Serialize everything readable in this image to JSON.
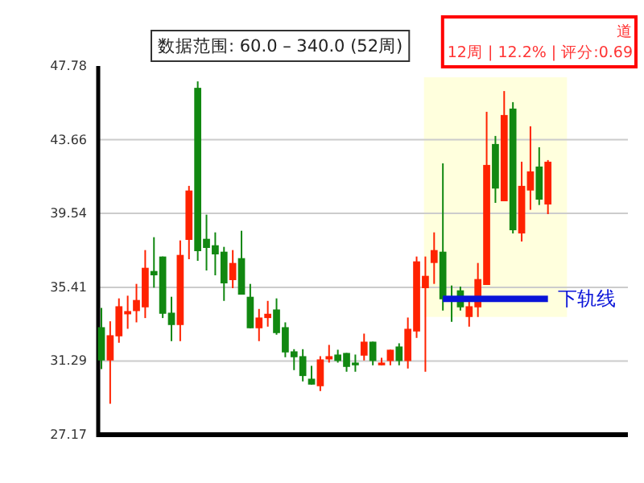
{
  "chart_data": {
    "type": "candlestick",
    "annotations": [
      "数据范围: 60.0 – 340.0 (52周)",
      "道",
      "12周 | 12.2% | 评分:0.69"
    ],
    "categories": [
      null,
      null,
      null,
      null,
      null,
      null,
      null,
      null,
      null,
      null,
      null,
      null,
      null,
      null,
      null,
      null,
      null,
      null,
      null,
      null,
      null,
      null,
      null,
      null,
      null,
      null,
      null,
      null,
      null,
      null,
      null,
      null,
      null,
      null,
      null,
      null,
      null,
      null,
      null,
      null,
      null,
      null,
      null,
      null,
      null,
      null,
      null,
      null,
      null,
      null,
      null,
      null
    ],
    "ohlc": [
      [
        33.18,
        34.26,
        30.84,
        31.32
      ],
      [
        31.32,
        33.51,
        28.9,
        32.73
      ],
      [
        32.67,
        34.79,
        32.31,
        34.35
      ],
      [
        33.9,
        34.94,
        33.09,
        34.08
      ],
      [
        34.08,
        35.6,
        33.45,
        34.7
      ],
      [
        34.29,
        37.49,
        33.69,
        36.5
      ],
      [
        36.32,
        38.21,
        35.39,
        36.08
      ],
      [
        37.13,
        37.13,
        33.69,
        33.93
      ],
      [
        33.99,
        34.88,
        32.4,
        33.3
      ],
      [
        33.3,
        38.03,
        32.4,
        37.22
      ],
      [
        38.06,
        41.08,
        36.98,
        40.82
      ],
      [
        46.56,
        46.92,
        36.89,
        37.43
      ],
      [
        38.12,
        39.47,
        36.35,
        37.61
      ],
      [
        37.76,
        38.48,
        36.08,
        37.25
      ],
      [
        37.4,
        37.67,
        34.65,
        35.63
      ],
      [
        35.81,
        37.49,
        35.36,
        36.77
      ],
      [
        37.04,
        38.57,
        35.0,
        35.0
      ],
      [
        34.88,
        35.6,
        33.12,
        33.12
      ],
      [
        33.12,
        34.2,
        32.4,
        33.72
      ],
      [
        33.69,
        34.65,
        33.21,
        33.93
      ],
      [
        34.17,
        34.79,
        32.76,
        32.85
      ],
      [
        33.18,
        33.45,
        31.5,
        31.77
      ],
      [
        31.83,
        31.95,
        30.78,
        31.5
      ],
      [
        31.56,
        31.95,
        30.15,
        30.45
      ],
      [
        30.3,
        31.02,
        29.97,
        29.97
      ],
      [
        29.88,
        31.56,
        29.61,
        31.38
      ],
      [
        31.38,
        32.19,
        31.2,
        31.56
      ],
      [
        31.65,
        31.92,
        31.2,
        31.29
      ],
      [
        31.74,
        31.74,
        30.69,
        30.96
      ],
      [
        31.2,
        31.65,
        30.69,
        31.05
      ],
      [
        31.59,
        32.82,
        31.32,
        32.37
      ],
      [
        32.37,
        32.37,
        31.05,
        31.29
      ],
      [
        31.05,
        31.47,
        31.05,
        31.2
      ],
      [
        31.29,
        31.92,
        31.05,
        31.92
      ],
      [
        32.1,
        32.28,
        31.05,
        31.29
      ],
      [
        31.29,
        33.72,
        30.87,
        33.09
      ],
      [
        32.94,
        37.13,
        32.58,
        36.86
      ],
      [
        35.36,
        37.13,
        30.69,
        36.05
      ],
      [
        36.77,
        38.48,
        35.6,
        37.49
      ],
      [
        37.4,
        42.34,
        34.11,
        34.74
      ],
      [
        34.74,
        35.51,
        33.48,
        34.65
      ],
      [
        35.24,
        35.45,
        34.11,
        34.29
      ],
      [
        33.75,
        34.74,
        33.21,
        34.35
      ],
      [
        34.29,
        36.77,
        33.75,
        35.87
      ],
      [
        35.54,
        45.22,
        35.54,
        42.25
      ],
      [
        43.42,
        43.87,
        40.13,
        40.93
      ],
      [
        40.22,
        46.38,
        40.22,
        45.04
      ],
      [
        45.4,
        45.76,
        38.42,
        38.6
      ],
      [
        38.42,
        42.43,
        37.97,
        41.08
      ],
      [
        40.82,
        44.41,
        39.74,
        41.89
      ],
      [
        42.16,
        43.24,
        40.01,
        40.31
      ],
      [
        40.04,
        42.52,
        39.5,
        42.43
      ]
    ],
    "colors": [
      "#118811",
      "#ff2200",
      "#ff2200",
      "#ff2200",
      "#ff2200",
      "#ff2200",
      "#118811",
      "#118811",
      "#118811",
      "#ff2200",
      "#ff2200",
      "#118811",
      "#118811",
      "#118811",
      "#118811",
      "#ff2200",
      "#118811",
      "#118811",
      "#ff2200",
      "#ff2200",
      "#118811",
      "#118811",
      "#118811",
      "#118811",
      "#118811",
      "#ff2200",
      "#ff2200",
      "#118811",
      "#118811",
      "#118811",
      "#ff2200",
      "#118811",
      "#ff2200",
      "#ff2200",
      "#118811",
      "#ff2200",
      "#ff2200",
      "#ff2200",
      "#ff2200",
      "#118811",
      "#118811",
      "#118811",
      "#ff2200",
      "#ff2200",
      "#ff2200",
      "#118811",
      "#ff2200",
      "#118811",
      "#ff2200",
      "#ff2200",
      "#118811",
      "#ff2200"
    ],
    "series": [
      {
        "type": "line",
        "name": "下轨线",
        "color": "#0a14d8",
        "values": [
          null,
          null,
          null,
          null,
          null,
          null,
          null,
          null,
          null,
          null,
          null,
          null,
          null,
          null,
          null,
          null,
          null,
          null,
          null,
          null,
          null,
          null,
          null,
          null,
          null,
          null,
          null,
          null,
          null,
          null,
          null,
          null,
          null,
          null,
          null,
          null,
          null,
          null,
          null,
          34.76,
          34.76,
          34.76,
          34.76,
          34.76,
          34.76,
          34.76,
          34.76,
          34.76,
          34.76,
          34.76,
          34.76,
          34.76
        ]
      }
    ],
    "ylim": [
      27.17,
      47.78
    ],
    "yticks": [
      27.17,
      31.29,
      35.41,
      39.54,
      43.66,
      47.78
    ],
    "grid": "y",
    "tick_labels": "y"
  }
}
